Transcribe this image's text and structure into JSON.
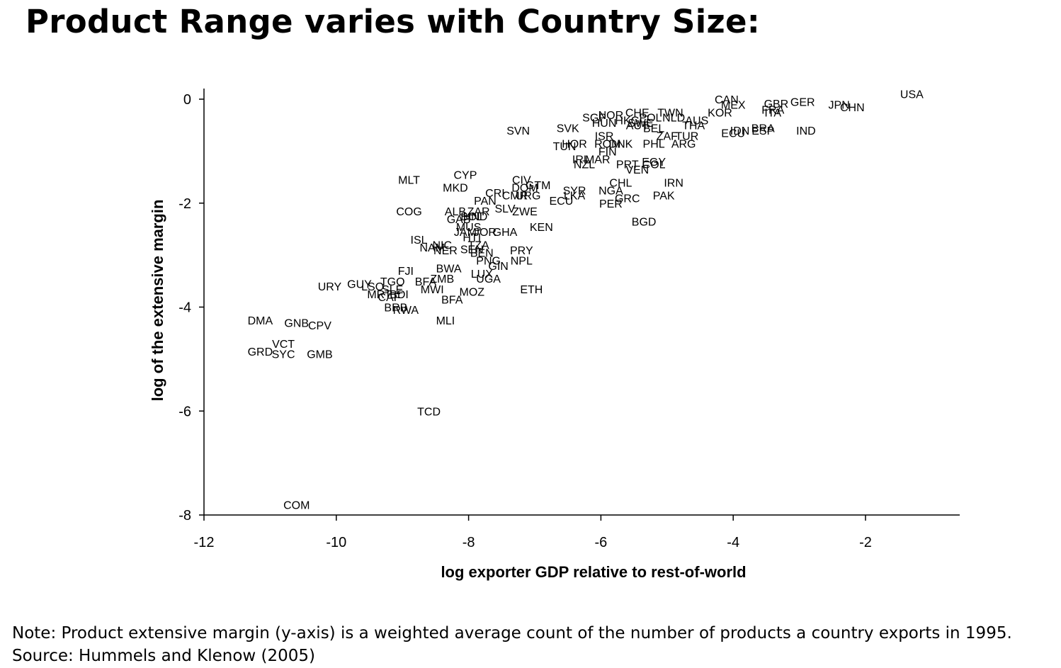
{
  "slide": {
    "title": "Product Range varies with Country Size:",
    "note": "Note: Product extensive margin (y-axis) is a weighted average count of the number of products a country exports in 1995.",
    "source": "Source: Hummels and Klenow (2005)"
  },
  "chart_data": {
    "type": "scatter",
    "title": "",
    "xlabel": "log exporter GDP relative to rest-of-world",
    "ylabel": "log of the extensive margin",
    "xlim": [
      -12,
      -0.6
    ],
    "ylim": [
      -8,
      0.2
    ],
    "xticks": [
      -12,
      -10,
      -8,
      -6,
      -4,
      -2
    ],
    "yticks": [
      0,
      -2,
      -4,
      -6,
      -8
    ],
    "xtick_labels": [
      "-12",
      "-10",
      "-8",
      "-6",
      "-4",
      "-2"
    ],
    "ytick_labels": [
      "0",
      "-2",
      "-4",
      "-6",
      "-8"
    ],
    "grid": false,
    "marker": "country code label",
    "points": [
      {
        "label": "USA",
        "x": -1.3,
        "y": 0.1
      },
      {
        "label": "JPN",
        "x": -2.4,
        "y": -0.1
      },
      {
        "label": "CHN",
        "x": -2.2,
        "y": -0.15
      },
      {
        "label": "GER",
        "x": -2.95,
        "y": -0.05
      },
      {
        "label": "GBR",
        "x": -3.35,
        "y": -0.08
      },
      {
        "label": "FRA",
        "x": -3.4,
        "y": -0.2
      },
      {
        "label": "ITA",
        "x": -3.4,
        "y": -0.25
      },
      {
        "label": "CAN",
        "x": -4.1,
        "y": 0.0
      },
      {
        "label": "MEX",
        "x": -4.0,
        "y": -0.1
      },
      {
        "label": "KOR",
        "x": -4.2,
        "y": -0.25
      },
      {
        "label": "BRA",
        "x": -3.55,
        "y": -0.55
      },
      {
        "label": "ESP",
        "x": -3.55,
        "y": -0.6
      },
      {
        "label": "IND",
        "x": -2.9,
        "y": -0.6
      },
      {
        "label": "IDN",
        "x": -3.9,
        "y": -0.6
      },
      {
        "label": "ECU",
        "x": -4.0,
        "y": -0.65
      },
      {
        "label": "TWN",
        "x": -4.95,
        "y": -0.25
      },
      {
        "label": "NLD",
        "x": -4.9,
        "y": -0.35
      },
      {
        "label": "AUS",
        "x": -4.55,
        "y": -0.4
      },
      {
        "label": "THA",
        "x": -4.6,
        "y": -0.5
      },
      {
        "label": "TUR",
        "x": -4.7,
        "y": -0.7
      },
      {
        "label": "ZAF",
        "x": -5.0,
        "y": -0.7
      },
      {
        "label": "ARG",
        "x": -4.75,
        "y": -0.85
      },
      {
        "label": "POL",
        "x": -5.25,
        "y": -0.35
      },
      {
        "label": "CHE",
        "x": -5.45,
        "y": -0.25
      },
      {
        "label": "HKG",
        "x": -5.6,
        "y": -0.4
      },
      {
        "label": "AUT",
        "x": -5.45,
        "y": -0.5
      },
      {
        "label": "SWE",
        "x": -5.4,
        "y": -0.45
      },
      {
        "label": "BEL",
        "x": -5.2,
        "y": -0.55
      },
      {
        "label": "ISR",
        "x": -5.95,
        "y": -0.7
      },
      {
        "label": "DNK",
        "x": -5.7,
        "y": -0.85
      },
      {
        "label": "ROM",
        "x": -5.9,
        "y": -0.85
      },
      {
        "label": "PHL",
        "x": -5.2,
        "y": -0.85
      },
      {
        "label": "FIN",
        "x": -5.9,
        "y": -1.0
      },
      {
        "label": "NOR",
        "x": -5.85,
        "y": -0.3
      },
      {
        "label": "SGP",
        "x": -6.1,
        "y": -0.35
      },
      {
        "label": "HUN",
        "x": -5.95,
        "y": -0.45
      },
      {
        "label": "SVK",
        "x": -6.5,
        "y": -0.55
      },
      {
        "label": "SVN",
        "x": -7.25,
        "y": -0.6
      },
      {
        "label": "HOR",
        "x": -6.4,
        "y": -0.85
      },
      {
        "label": "TUN",
        "x": -6.55,
        "y": -0.9
      },
      {
        "label": "IRL",
        "x": -6.3,
        "y": -1.15
      },
      {
        "label": "MAR",
        "x": -6.05,
        "y": -1.15
      },
      {
        "label": "NZL",
        "x": -6.25,
        "y": -1.25
      },
      {
        "label": "PRT",
        "x": -5.6,
        "y": -1.25
      },
      {
        "label": "EGY",
        "x": -5.2,
        "y": -1.2
      },
      {
        "label": "COL",
        "x": -5.2,
        "y": -1.25
      },
      {
        "label": "VEN",
        "x": -5.45,
        "y": -1.35
      },
      {
        "label": "IRN",
        "x": -4.9,
        "y": -1.6
      },
      {
        "label": "CHL",
        "x": -5.7,
        "y": -1.6
      },
      {
        "label": "NGA",
        "x": -5.85,
        "y": -1.75
      },
      {
        "label": "PAK",
        "x": -5.05,
        "y": -1.85
      },
      {
        "label": "GRC",
        "x": -5.6,
        "y": -1.9
      },
      {
        "label": "PER",
        "x": -5.85,
        "y": -2.0
      },
      {
        "label": "BGD",
        "x": -5.35,
        "y": -2.35
      },
      {
        "label": "MLT",
        "x": -8.9,
        "y": -1.55
      },
      {
        "label": "CYP",
        "x": -8.05,
        "y": -1.45
      },
      {
        "label": "MKD",
        "x": -8.2,
        "y": -1.7
      },
      {
        "label": "CIV",
        "x": -7.2,
        "y": -1.55
      },
      {
        "label": "GTM",
        "x": -6.95,
        "y": -1.65
      },
      {
        "label": "DOM",
        "x": -7.15,
        "y": -1.7
      },
      {
        "label": "SYR",
        "x": -6.4,
        "y": -1.75
      },
      {
        "label": "LKA",
        "x": -6.4,
        "y": -1.85
      },
      {
        "label": "CRI",
        "x": -7.6,
        "y": -1.8
      },
      {
        "label": "CMR",
        "x": -7.3,
        "y": -1.85
      },
      {
        "label": "URG",
        "x": -7.1,
        "y": -1.85
      },
      {
        "label": "ECU",
        "x": -6.6,
        "y": -1.95
      },
      {
        "label": "PAN",
        "x": -7.75,
        "y": -1.95
      },
      {
        "label": "SLV",
        "x": -7.45,
        "y": -2.1
      },
      {
        "label": "ZWE",
        "x": -7.15,
        "y": -2.15
      },
      {
        "label": "COG",
        "x": -8.9,
        "y": -2.15
      },
      {
        "label": "ALB",
        "x": -8.2,
        "y": -2.15
      },
      {
        "label": "ZAR",
        "x": -7.85,
        "y": -2.15
      },
      {
        "label": "GAB",
        "x": -8.15,
        "y": -2.3
      },
      {
        "label": "BOL",
        "x": -7.95,
        "y": -2.25
      },
      {
        "label": "HND",
        "x": -7.9,
        "y": -2.25
      },
      {
        "label": "MUS",
        "x": -8.0,
        "y": -2.45
      },
      {
        "label": "KEN",
        "x": -6.9,
        "y": -2.45
      },
      {
        "label": "JAM",
        "x": -8.05,
        "y": -2.55
      },
      {
        "label": "JOR",
        "x": -7.75,
        "y": -2.55
      },
      {
        "label": "GHA",
        "x": -7.45,
        "y": -2.55
      },
      {
        "label": "HTI",
        "x": -7.95,
        "y": -2.65
      },
      {
        "label": "ISL",
        "x": -8.75,
        "y": -2.7
      },
      {
        "label": "NIC",
        "x": -8.4,
        "y": -2.8
      },
      {
        "label": "NAM",
        "x": -8.55,
        "y": -2.85
      },
      {
        "label": "NER",
        "x": -8.35,
        "y": -2.9
      },
      {
        "label": "TZA",
        "x": -7.85,
        "y": -2.8
      },
      {
        "label": "SEN",
        "x": -7.95,
        "y": -2.88
      },
      {
        "label": "BEN",
        "x": -7.8,
        "y": -2.95
      },
      {
        "label": "PRY",
        "x": -7.2,
        "y": -2.9
      },
      {
        "label": "PNG",
        "x": -7.7,
        "y": -3.1
      },
      {
        "label": "GIN",
        "x": -7.55,
        "y": -3.2
      },
      {
        "label": "NPL",
        "x": -7.2,
        "y": -3.1
      },
      {
        "label": "FJI",
        "x": -8.95,
        "y": -3.3
      },
      {
        "label": "BWA",
        "x": -8.3,
        "y": -3.25
      },
      {
        "label": "LUX",
        "x": -7.8,
        "y": -3.35
      },
      {
        "label": "TGO",
        "x": -9.15,
        "y": -3.5
      },
      {
        "label": "BFA",
        "x": -8.65,
        "y": -3.5
      },
      {
        "label": "ZMB",
        "x": -8.4,
        "y": -3.45
      },
      {
        "label": "UGA",
        "x": -7.7,
        "y": -3.45
      },
      {
        "label": "GUY",
        "x": -9.65,
        "y": -3.55
      },
      {
        "label": "LSO",
        "x": -9.45,
        "y": -3.6
      },
      {
        "label": "SLE",
        "x": -9.15,
        "y": -3.65
      },
      {
        "label": "MWI",
        "x": -8.55,
        "y": -3.65
      },
      {
        "label": "MOZ",
        "x": -7.95,
        "y": -3.7
      },
      {
        "label": "ETH",
        "x": -7.05,
        "y": -3.65
      },
      {
        "label": "URY",
        "x": -10.1,
        "y": -3.6
      },
      {
        "label": "MRT",
        "x": -9.35,
        "y": -3.75
      },
      {
        "label": "CAF",
        "x": -9.2,
        "y": -3.8
      },
      {
        "label": "BDI",
        "x": -9.05,
        "y": -3.75
      },
      {
        "label": "BFA",
        "x": -8.25,
        "y": -3.85
      },
      {
        "label": "BRB",
        "x": -9.1,
        "y": -4.0
      },
      {
        "label": "RWA",
        "x": -8.95,
        "y": -4.05
      },
      {
        "label": "MLI",
        "x": -8.35,
        "y": -4.25
      },
      {
        "label": "DMA",
        "x": -11.15,
        "y": -4.25
      },
      {
        "label": "GNB",
        "x": -10.6,
        "y": -4.3
      },
      {
        "label": "CPV",
        "x": -10.25,
        "y": -4.35
      },
      {
        "label": "VCT",
        "x": -10.8,
        "y": -4.7
      },
      {
        "label": "GRD",
        "x": -11.15,
        "y": -4.85
      },
      {
        "label": "SYC",
        "x": -10.8,
        "y": -4.9
      },
      {
        "label": "GMB",
        "x": -10.25,
        "y": -4.9
      },
      {
        "label": "TCD",
        "x": -8.6,
        "y": -6.0
      },
      {
        "label": "COM",
        "x": -10.6,
        "y": -7.8
      }
    ]
  }
}
